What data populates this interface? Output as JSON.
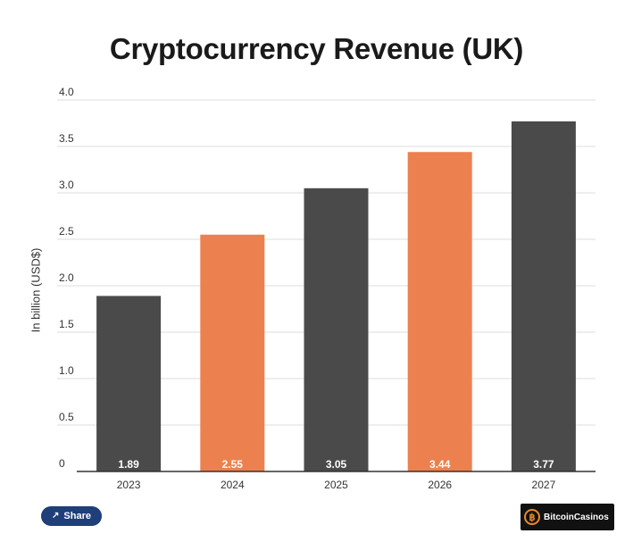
{
  "chart_data": {
    "type": "bar",
    "title": "Cryptocurrency Revenue (UK)",
    "xlabel": "",
    "ylabel": "In billion (USD$)",
    "categories": [
      "2023",
      "2024",
      "2025",
      "2026",
      "2027"
    ],
    "values": [
      1.89,
      2.55,
      3.05,
      3.44,
      3.77
    ],
    "value_labels": [
      "1.89",
      "2.55",
      "3.05",
      "3.44",
      "3.77"
    ],
    "bar_colors": [
      "#4a4a4a",
      "#ec814f",
      "#4a4a4a",
      "#ec814f",
      "#4a4a4a"
    ],
    "ylim": [
      0,
      4.0
    ],
    "yticks": [
      "0",
      "0.5",
      "1.0",
      "1.5",
      "2.0",
      "2.5",
      "3.0",
      "3.5",
      "4.0"
    ],
    "grid": true,
    "legend": "none"
  },
  "share": {
    "label": "Share",
    "icon": "share-icon"
  },
  "brand": {
    "name": "BitcoinCasinos",
    "icon": "bitcoin-coin-icon"
  }
}
